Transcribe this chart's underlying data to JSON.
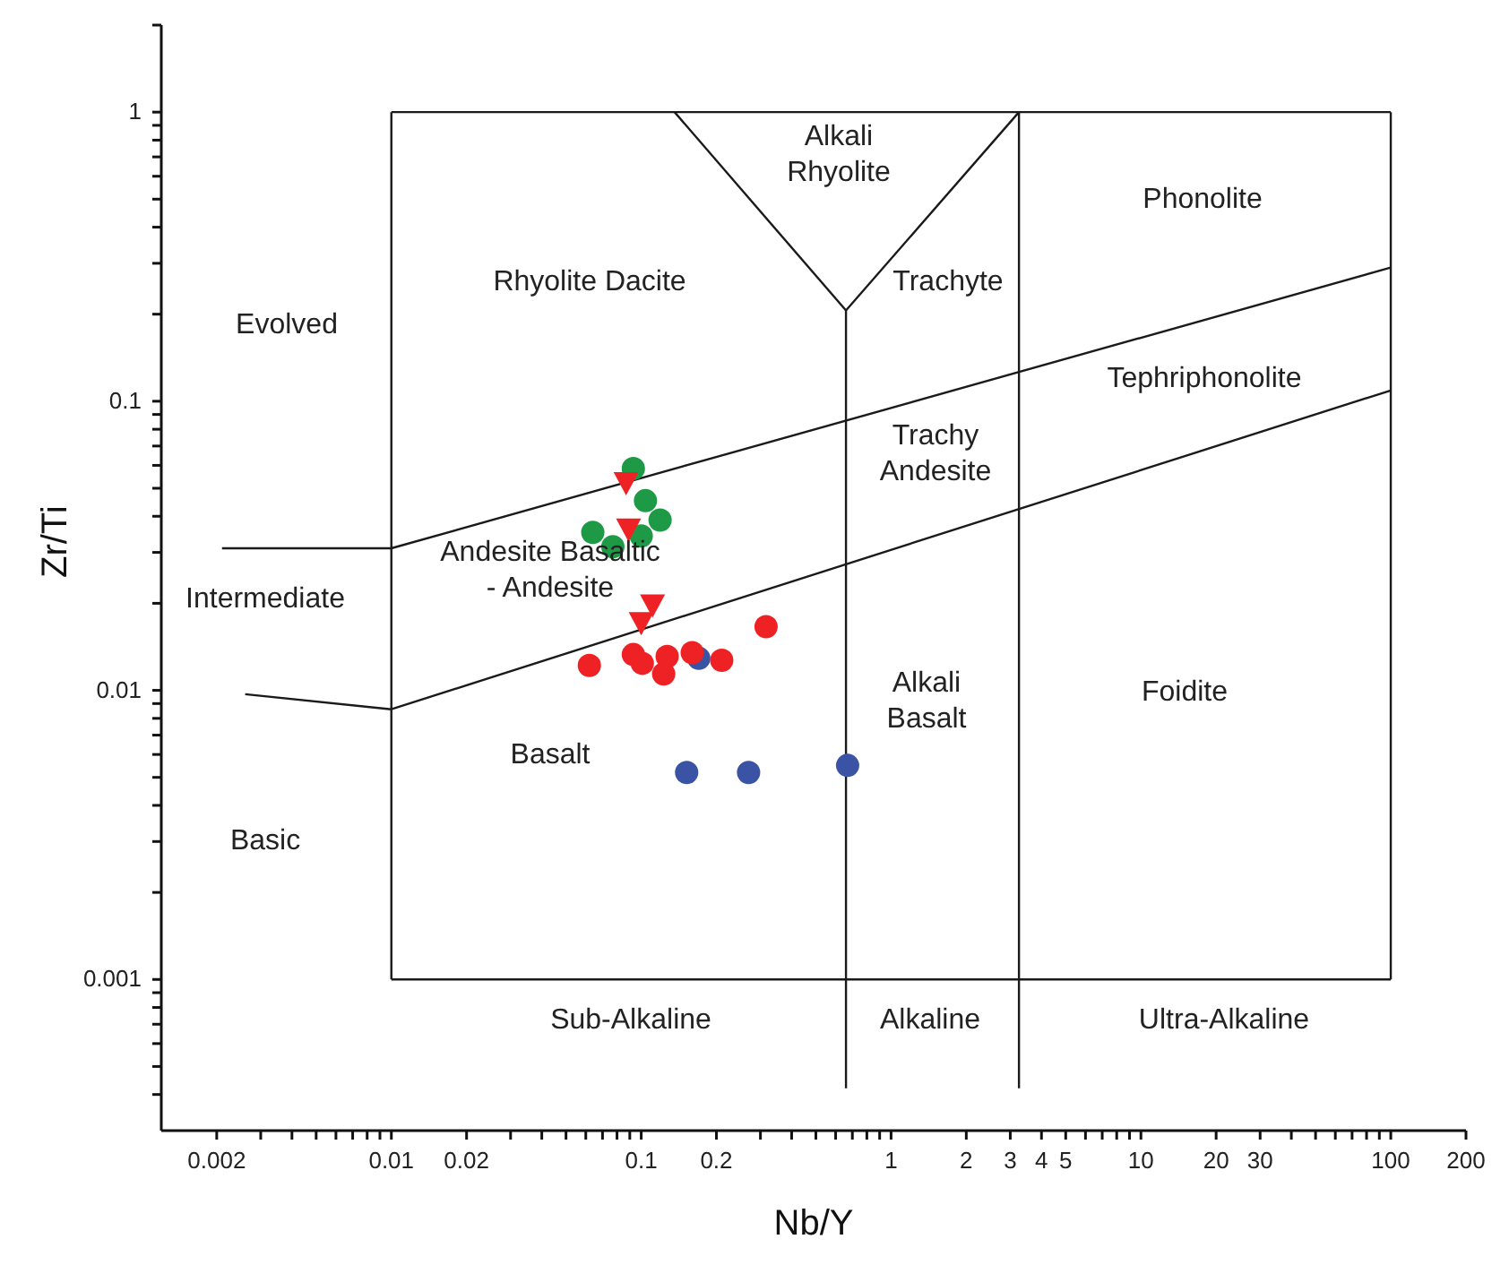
{
  "chart_data": {
    "type": "scatter",
    "xlabel": "Nb/Y",
    "ylabel": "Zr/Ti",
    "log": "xy",
    "grid": false,
    "legend": false,
    "xlim": [
      0.0012,
      200
    ],
    "ylim": [
      0.0003,
      2
    ],
    "xticks": [
      0.002,
      {
        "value": 0.003,
        "label": null
      },
      {
        "value": 0.004,
        "label": null
      },
      {
        "value": 0.005,
        "label": null
      },
      {
        "value": 0.006,
        "label": null
      },
      {
        "value": 0.007,
        "label": null
      },
      {
        "value": 0.008,
        "label": null
      },
      {
        "value": 0.009,
        "label": null
      },
      0.01,
      0.02,
      {
        "value": 0.03,
        "label": null
      },
      {
        "value": 0.04,
        "label": null
      },
      {
        "value": 0.05,
        "label": null
      },
      {
        "value": 0.06,
        "label": null
      },
      {
        "value": 0.07,
        "label": null
      },
      {
        "value": 0.08,
        "label": null
      },
      {
        "value": 0.09,
        "label": null
      },
      0.1,
      0.2,
      {
        "value": 0.3,
        "label": null
      },
      {
        "value": 0.4,
        "label": null
      },
      {
        "value": 0.5,
        "label": null
      },
      {
        "value": 0.6,
        "label": null
      },
      {
        "value": 0.7,
        "label": null
      },
      {
        "value": 0.8,
        "label": null
      },
      {
        "value": 0.9,
        "label": null
      },
      1,
      2,
      3,
      4,
      5,
      {
        "value": 6,
        "label": null
      },
      {
        "value": 7,
        "label": null
      },
      {
        "value": 8,
        "label": null
      },
      {
        "value": 9,
        "label": null
      },
      10,
      20,
      30,
      {
        "value": 40,
        "label": null
      },
      {
        "value": 50,
        "label": null
      },
      {
        "value": 60,
        "label": null
      },
      {
        "value": 70,
        "label": null
      },
      {
        "value": 80,
        "label": null
      },
      {
        "value": 90,
        "label": null
      },
      100,
      200
    ],
    "yticks": [
      {
        "value": 0.0004,
        "label": null
      },
      {
        "value": 0.0005,
        "label": null
      },
      {
        "value": 0.0006,
        "label": null
      },
      {
        "value": 0.0007,
        "label": null
      },
      {
        "value": 0.0008,
        "label": null
      },
      {
        "value": 0.0009,
        "label": null
      },
      0.001,
      {
        "value": 0.002,
        "label": null
      },
      {
        "value": 0.003,
        "label": null
      },
      {
        "value": 0.004,
        "label": null
      },
      {
        "value": 0.005,
        "label": null
      },
      {
        "value": 0.006,
        "label": null
      },
      {
        "value": 0.007,
        "label": null
      },
      {
        "value": 0.008,
        "label": null
      },
      {
        "value": 0.009,
        "label": null
      },
      0.01,
      {
        "value": 0.02,
        "label": null
      },
      {
        "value": 0.03,
        "label": null
      },
      {
        "value": 0.04,
        "label": null
      },
      {
        "value": 0.05,
        "label": null
      },
      {
        "value": 0.06,
        "label": null
      },
      {
        "value": 0.07,
        "label": null
      },
      {
        "value": 0.08,
        "label": null
      },
      {
        "value": 0.09,
        "label": null
      },
      0.1,
      {
        "value": 0.2,
        "label": null
      },
      {
        "value": 0.3,
        "label": null
      },
      {
        "value": 0.4,
        "label": null
      },
      {
        "value": 0.5,
        "label": null
      },
      {
        "value": 0.6,
        "label": null
      },
      {
        "value": 0.7,
        "label": null
      },
      {
        "value": 0.8,
        "label": null
      },
      {
        "value": 0.9,
        "label": null
      },
      1,
      {
        "value": 2,
        "label": null
      }
    ],
    "series": [
      {
        "type": "line",
        "color": "#1a1a1a",
        "x": [
          0.01,
          100
        ],
        "values": [
          0.001,
          0.001
        ]
      },
      {
        "type": "line",
        "color": "#1a1a1a",
        "x": [
          0.01,
          100
        ],
        "values": [
          1,
          1
        ]
      },
      {
        "type": "line",
        "color": "#1a1a1a",
        "x": [
          0.01,
          0.01
        ],
        "values": [
          0.001,
          1
        ]
      },
      {
        "type": "line",
        "color": "#1a1a1a",
        "x": [
          100,
          100
        ],
        "values": [
          0.001,
          1
        ]
      },
      {
        "type": "line",
        "color": "#1a1a1a",
        "x": [
          0.0021,
          0.01,
          100
        ],
        "values": [
          0.031,
          0.031,
          0.29
        ]
      },
      {
        "type": "line",
        "color": "#1a1a1a",
        "x": [
          0.0026,
          0.01,
          100
        ],
        "values": [
          0.0097,
          0.0086,
          0.109
        ]
      },
      {
        "type": "line",
        "color": "#1a1a1a",
        "x": [
          0.136,
          0.66,
          3.25
        ],
        "values": [
          1,
          0.206,
          1
        ]
      },
      {
        "type": "line",
        "color": "#1a1a1a",
        "x": [
          0.66,
          0.66
        ],
        "values": [
          0.206,
          0.00042
        ]
      },
      {
        "type": "line",
        "color": "#1a1a1a",
        "x": [
          3.25,
          3.25
        ],
        "values": [
          1,
          0.00042
        ]
      },
      {
        "type": "scatter",
        "marker": "circle",
        "color": "#1e9a47",
        "x": [
          0.093,
          0.104,
          0.119,
          0.1,
          0.064,
          0.077
        ],
        "values": [
          0.0585,
          0.0453,
          0.0388,
          0.0342,
          0.0352,
          0.0314
        ]
      },
      {
        "type": "scatter",
        "marker": "circle",
        "color": "#3a53a4",
        "x": [
          0.17,
          0.152,
          0.269,
          0.67
        ],
        "values": [
          0.0129,
          0.0052,
          0.0052,
          0.0055
        ]
      },
      {
        "type": "scatter",
        "marker": "circle",
        "color": "#ee2224",
        "x": [
          0.062,
          0.093,
          0.101,
          0.127,
          0.123,
          0.16,
          0.21,
          0.316
        ],
        "values": [
          0.0122,
          0.0133,
          0.0124,
          0.0131,
          0.0114,
          0.0135,
          0.0127,
          0.0166
        ]
      },
      {
        "type": "scatter",
        "marker": "triangle",
        "color": "#ee2224",
        "x": [
          0.087,
          0.089,
          0.111,
          0.1
        ],
        "values": [
          0.0522,
          0.0361,
          0.0197,
          0.0171
        ]
      }
    ],
    "annotations": [
      "Alkali\nRhyolite",
      "Phonolite",
      "Rhyolite Dacite",
      "Trachyte",
      "Evolved",
      "Tephriphonolite",
      "Trachy\nAndesite",
      "Andesite Basaltic\n- Andesite",
      "Intermediate",
      "Alkali\nBasalt",
      "Foidite",
      "Basalt",
      "Basic",
      "Sub-Alkaline",
      "Alkaline",
      "Ultra-Alkaline"
    ]
  }
}
